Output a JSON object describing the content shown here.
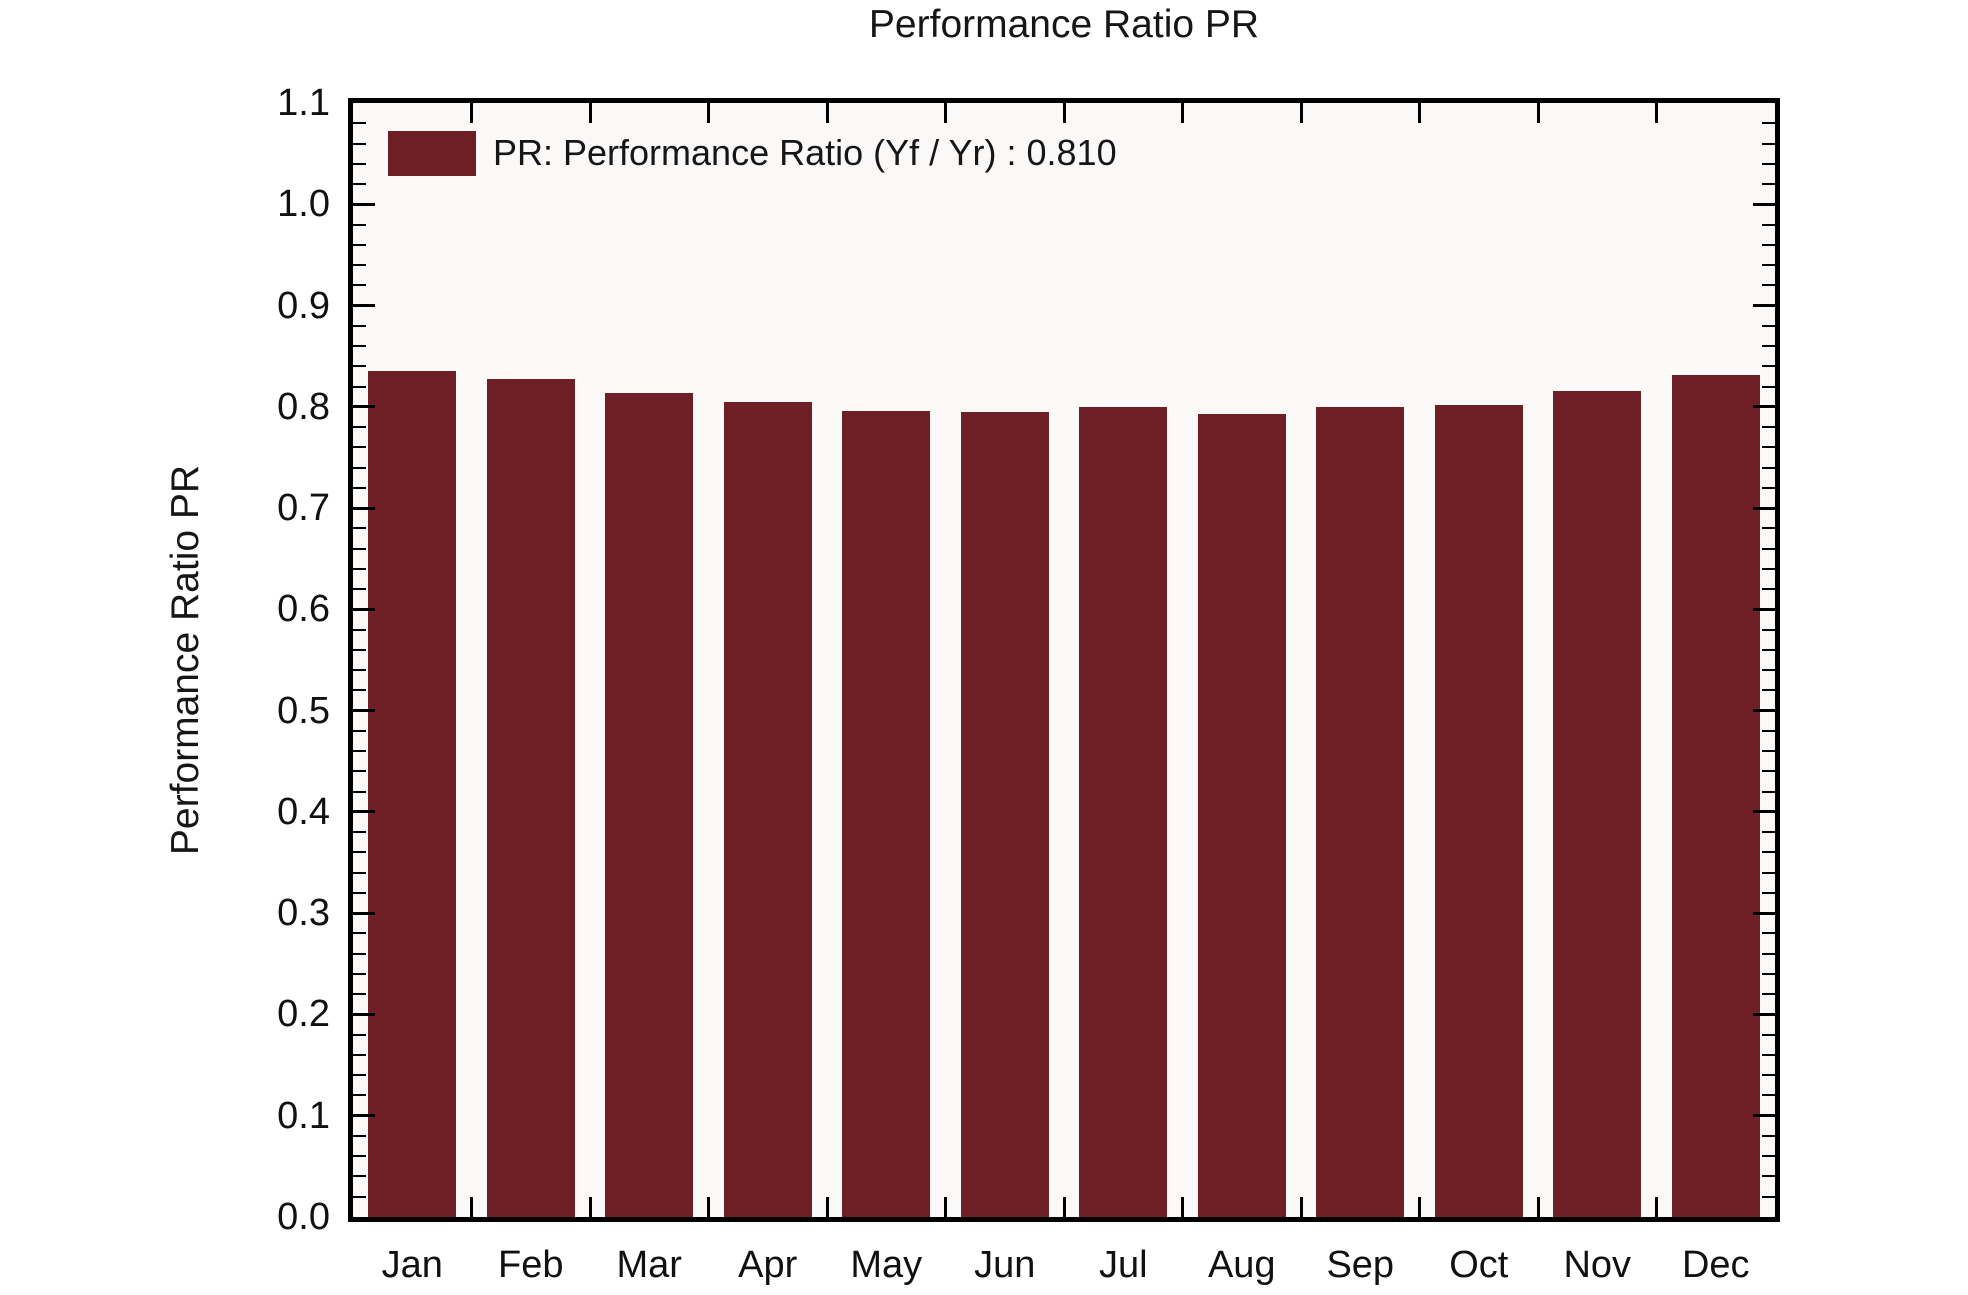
{
  "chart_data": {
    "type": "bar",
    "title": "Performance Ratio PR",
    "ylabel": "Performance Ratio PR",
    "xlabel": "",
    "legend": {
      "label": "PR: Performance Ratio (Yf / Yr) : 0.810",
      "position": "top-left"
    },
    "categories": [
      "Jan",
      "Feb",
      "Mar",
      "Apr",
      "May",
      "Jun",
      "Jul",
      "Aug",
      "Sep",
      "Oct",
      "Nov",
      "Dec"
    ],
    "values": [
      0.835,
      0.827,
      0.814,
      0.805,
      0.796,
      0.795,
      0.8,
      0.793,
      0.8,
      0.802,
      0.816,
      0.831
    ],
    "average_pr": "0.810",
    "ylim": [
      0.0,
      1.1
    ],
    "ytick_labels": [
      "0.0",
      "0.1",
      "0.2",
      "0.3",
      "0.4",
      "0.5",
      "0.6",
      "0.7",
      "0.8",
      "0.9",
      "1.0",
      "1.1"
    ],
    "ytick_major_step": 0.1,
    "ytick_minor_step": 0.02,
    "grid": "off",
    "colors": {
      "bar": "#6E2026",
      "frame": "#000000",
      "plot_background": "#FBF8F8",
      "page_background": "#FFFFFF",
      "text": "#161616"
    }
  }
}
